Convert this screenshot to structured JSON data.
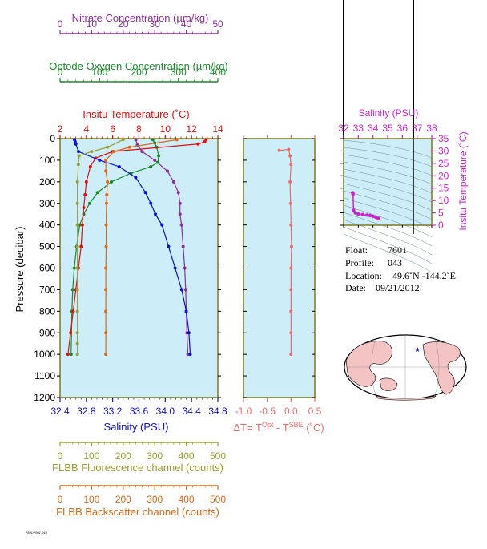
{
  "colors": {
    "nitrate": "#8b2f9b",
    "oxygen": "#1a8a2a",
    "temperature": "#e01010",
    "salinity": "#1010cc",
    "fluorescence": "#9aa030",
    "backscatter": "#d86a1a",
    "delta": "#f06a6a",
    "ts_axis": "#cc22cc",
    "frame": "#7a7a1a",
    "plot_bg": "#cdeef8",
    "land": "#f4c4c4"
  },
  "axes": {
    "nitrate_title": "Nitrate Concentration (µm/kg)",
    "oxygen_title": "Optode Oxygen Concentration (µm/kg)",
    "temperature_title": "Insitu Temperature (˚C)",
    "salinity_title": "Salinity (PSU)",
    "pressure_title": "Pressure (decibar)",
    "fluor_title": "FLBB Fluorescence channel (counts)",
    "backscatter_title": "FLBB Backscatter channel (counts)",
    "delta_title": "ΔT= T",
    "delta_sup1": "Opt",
    "delta_mid": " - T",
    "delta_sup2": "SBE",
    "delta_unit": " (˚C)",
    "ts_salinity_title": "Salinity (PSU)",
    "ts_temperature_title": "Insitu Temperature (˚C)"
  },
  "info": {
    "float_label": "Float:",
    "float_value": "7601",
    "profile_label": "Profile:",
    "profile_value": "043",
    "location_label": "Location:",
    "location_value": "49.6˚N  -144.2˚E",
    "date_label": "Date:",
    "date_value": "09/21/2012"
  },
  "footer_text": "7601/7601.043",
  "chart_data": [
    {
      "type": "line",
      "y_axis": {
        "label": "Pressure (decibar)",
        "range": [
          0,
          1200
        ],
        "reversed": true,
        "ticks": [
          0,
          100,
          200,
          300,
          400,
          500,
          600,
          700,
          800,
          900,
          1000,
          1100,
          1200
        ]
      },
      "x_axes": [
        {
          "name": "nitrate",
          "label": "Nitrate Concentration (µm/kg)",
          "range": [
            0,
            50
          ],
          "ticks": [
            0,
            10,
            20,
            30,
            40,
            50
          ],
          "position": "top"
        },
        {
          "name": "oxygen",
          "label": "Optode Oxygen Concentration (µm/kg)",
          "range": [
            0,
            400
          ],
          "ticks": [
            0,
            100,
            200,
            300,
            400
          ],
          "position": "top"
        },
        {
          "name": "temperature",
          "label": "Insitu Temperature (˚C)",
          "range": [
            2,
            14
          ],
          "ticks": [
            2,
            4,
            6,
            8,
            10,
            12,
            14
          ],
          "position": "top"
        },
        {
          "name": "salinity",
          "label": "Salinity (PSU)",
          "range": [
            32.4,
            34.8
          ],
          "ticks": [
            32.4,
            32.8,
            33.2,
            33.6,
            34.0,
            34.4,
            34.8
          ],
          "position": "bottom"
        },
        {
          "name": "fluorescence",
          "label": "FLBB Fluorescence channel (counts)",
          "range": [
            0,
            500
          ],
          "ticks": [
            0,
            100,
            200,
            300,
            400,
            500
          ],
          "position": "bottom"
        },
        {
          "name": "backscatter",
          "label": "FLBB Backscatter channel (counts)",
          "range": [
            0,
            500
          ],
          "ticks": [
            0,
            100,
            200,
            300,
            400,
            500
          ],
          "position": "bottom"
        }
      ],
      "series": [
        {
          "name": "nitrate",
          "axis": "nitrate",
          "x": [
            24,
            24.5,
            26,
            30,
            34,
            36,
            37.5,
            38,
            38,
            38.5,
            39,
            39.5,
            39.8,
            40,
            40.2,
            40.5
          ],
          "y": [
            5,
            30,
            60,
            100,
            150,
            200,
            250,
            300,
            350,
            400,
            500,
            600,
            700,
            800,
            900,
            1000
          ]
        },
        {
          "name": "oxygen",
          "axis": "oxygen",
          "x": [
            235,
            240,
            245,
            250,
            248,
            230,
            180,
            130,
            95,
            75,
            60,
            50,
            42,
            36,
            32,
            30,
            28
          ],
          "y": [
            5,
            20,
            40,
            80,
            110,
            130,
            160,
            200,
            250,
            300,
            350,
            400,
            500,
            600,
            700,
            800,
            1000
          ]
        },
        {
          "name": "temperature",
          "axis": "temperature",
          "x": [
            13.1,
            13.0,
            12.5,
            6.0,
            4.7,
            4.3,
            4.0,
            3.9,
            3.8,
            3.7,
            3.6,
            3.4,
            3.2,
            3.0,
            2.8,
            2.6
          ],
          "y": [
            5,
            15,
            25,
            60,
            90,
            130,
            200,
            260,
            320,
            400,
            500,
            600,
            700,
            800,
            900,
            1000
          ]
        },
        {
          "name": "salinity",
          "axis": "salinity",
          "x": [
            32.62,
            32.63,
            32.64,
            32.68,
            33.0,
            33.3,
            33.55,
            33.7,
            33.78,
            33.85,
            33.95,
            34.05,
            34.15,
            34.25,
            34.32,
            34.36,
            34.38
          ],
          "y": [
            5,
            15,
            25,
            60,
            100,
            130,
            180,
            250,
            300,
            350,
            400,
            500,
            600,
            700,
            800,
            900,
            1000
          ]
        },
        {
          "name": "fluorescence",
          "axis": "fluorescence",
          "x": [
            200,
            150,
            100,
            60,
            58,
            55,
            55,
            55,
            55,
            55,
            55,
            55,
            55,
            55,
            55
          ],
          "y": [
            5,
            40,
            60,
            80,
            120,
            200,
            300,
            400,
            500,
            600,
            700,
            800,
            900,
            950,
            1000
          ]
        },
        {
          "name": "backscatter",
          "axis": "backscatter",
          "x": [
            370,
            220,
            170,
            145,
            145,
            150,
            148,
            147,
            146,
            146,
            145,
            145,
            145,
            145,
            145
          ],
          "y": [
            5,
            40,
            60,
            100,
            150,
            200,
            260,
            300,
            400,
            500,
            600,
            700,
            800,
            900,
            1000
          ]
        }
      ]
    },
    {
      "type": "line",
      "title": "ΔT= T Opt - T SBE (˚C)",
      "x_range": [
        -1.0,
        0.5
      ],
      "x_ticks": [
        -1.0,
        -0.5,
        0.0,
        0.5
      ],
      "y_range": [
        0,
        1200
      ],
      "y_reversed": true,
      "series": [
        {
          "name": "delta_t",
          "x": [
            -0.25,
            -0.05,
            -0.02,
            0.0,
            -0.02,
            -0.01,
            0.0,
            0.01,
            0.0,
            0.0,
            0.0,
            0.0,
            0.0
          ],
          "y": [
            55,
            50,
            80,
            120,
            200,
            300,
            400,
            500,
            600,
            700,
            800,
            900,
            1000
          ]
        }
      ]
    },
    {
      "type": "scatter",
      "title": "Salinity (PSU)",
      "x_range": [
        32,
        38
      ],
      "x_ticks": [
        32,
        33,
        34,
        35,
        36,
        37,
        38
      ],
      "y_range": [
        0,
        35
      ],
      "y_ticks": [
        0,
        5,
        10,
        15,
        20,
        25,
        30,
        35
      ],
      "ylabel": "Insitu Temperature (˚C)",
      "series": [
        {
          "name": "ts_profile",
          "x": [
            32.62,
            32.63,
            32.64,
            32.68,
            32.8,
            33.0,
            33.3,
            33.6,
            33.8,
            34.0,
            34.2,
            34.35,
            34.38
          ],
          "y": [
            13.1,
            13.0,
            12.5,
            6.0,
            5.0,
            4.5,
            4.3,
            4.1,
            3.9,
            3.6,
            3.2,
            2.8,
            2.6
          ]
        }
      ]
    }
  ]
}
